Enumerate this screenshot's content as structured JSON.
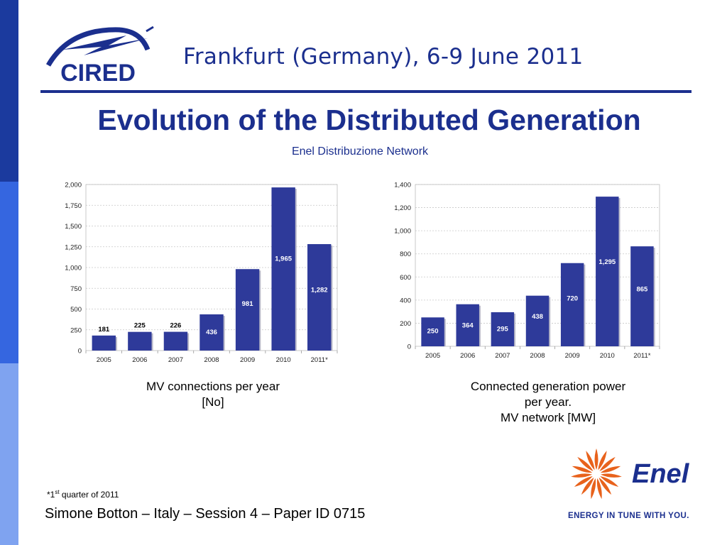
{
  "header": {
    "logo_text": "CIRED",
    "conference": "Frankfurt (Germany), 6-9 June 2011"
  },
  "title": "Evolution of the Distributed Generation",
  "subtitle": "Enel Distribuzione Network",
  "colors": {
    "brand_blue": "#1b2f8e",
    "bar": "#2e3a9a",
    "enel_orange": "#e8621c"
  },
  "chart_data": [
    {
      "type": "bar",
      "title": "",
      "categories": [
        "2005",
        "2006",
        "2007",
        "2008",
        "2009",
        "2010",
        "2011*"
      ],
      "values": [
        181,
        225,
        226,
        436,
        981,
        1965,
        1282
      ],
      "labels": [
        "181",
        "225",
        "226",
        "436",
        "981",
        "1,965",
        "1,282"
      ],
      "yticks": [
        "0",
        "250",
        "500",
        "750",
        "1,000",
        "1,250",
        "1,500",
        "1,750",
        "2,000"
      ],
      "ylim": [
        0,
        2000
      ],
      "grid": true,
      "legend": "none",
      "xlabel": "",
      "ylabel": ""
    },
    {
      "type": "bar",
      "title": "",
      "categories": [
        "2005",
        "2006",
        "2007",
        "2008",
        "2009",
        "2010",
        "2011*"
      ],
      "values": [
        250,
        364,
        295,
        438,
        720,
        1295,
        865
      ],
      "labels": [
        "250",
        "364",
        "295",
        "438",
        "720",
        "1,295",
        "865"
      ],
      "yticks": [
        "0",
        "200",
        "400",
        "600",
        "800",
        "1,000",
        "1,200",
        "1,400"
      ],
      "ylim": [
        0,
        1400
      ],
      "grid": true,
      "legend": "none",
      "xlabel": "",
      "ylabel": ""
    }
  ],
  "captions": {
    "chart1_line1": "MV connections per year",
    "chart1_line2": "[No]",
    "chart2_line1": "Connected generation power",
    "chart2_line2": "per year.",
    "chart2_line3": "MV network [MW]"
  },
  "footnote": {
    "prefix": "*1",
    "sup": "st",
    "text": " quarter of 2011"
  },
  "author": "Simone Botton – Italy – Session 4 – Paper ID 0715",
  "enel": {
    "logo_text": "Enel",
    "tagline": "ENERGY IN TUNE WITH YOU."
  }
}
